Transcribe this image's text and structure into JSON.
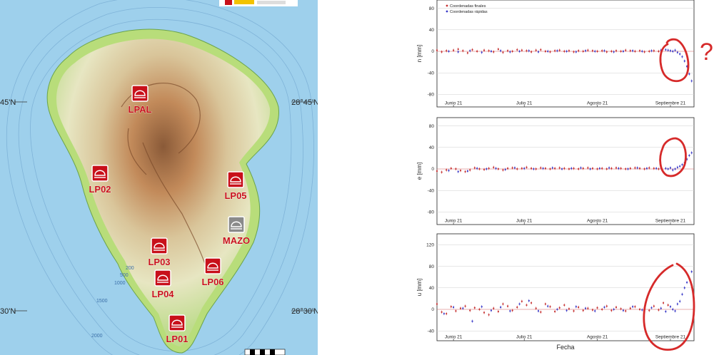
{
  "map": {
    "lat_labels": {
      "left_mid": "45'N",
      "right_mid": "28°45'N",
      "left_bottom": "30'N",
      "right_bottom": "28°30'N"
    },
    "contours": [
      "200",
      "500",
      "1000",
      "1500",
      "2000"
    ],
    "stations": [
      {
        "name": "LPAL",
        "style": "red"
      },
      {
        "name": "LP02",
        "style": "red"
      },
      {
        "name": "LP05",
        "style": "red"
      },
      {
        "name": "MAZO",
        "style": "gray"
      },
      {
        "name": "LP03",
        "style": "red"
      },
      {
        "name": "LP04",
        "style": "red"
      },
      {
        "name": "LP06",
        "style": "red"
      },
      {
        "name": "LP01",
        "style": "red"
      }
    ],
    "colors": {
      "sea": "#9ed0ec",
      "coast": "#b8dd7a",
      "station": "#c8101a",
      "station_gray": "#8a8a8a"
    }
  },
  "legend": {
    "final_label": "Coordenadas finales",
    "rapid_label": "Coordenadas rápidas",
    "final_color": "#c63030",
    "rapid_color": "#3a3ac8"
  },
  "annotation": {
    "mark": "?"
  },
  "chart_data": [
    {
      "type": "scatter",
      "ylabel": "n [mm]",
      "xlabel": "",
      "ylim": [
        -90,
        90
      ],
      "yticks": [
        -80,
        -40,
        0,
        40,
        80
      ],
      "xticks": [
        {
          "label": "Junio 21",
          "day": 7
        },
        {
          "label": "Julio 21",
          "day": 37
        },
        {
          "label": "Agosto 21",
          "day": 68
        },
        {
          "label": "Septiembre 21",
          "day": 99
        }
      ],
      "xlim": [
        0,
        109
      ],
      "grid": true,
      "series": [
        {
          "name": "Coordenadas finales",
          "points": [
            [
              0,
              2
            ],
            [
              2,
              -1
            ],
            [
              4,
              1
            ],
            [
              7,
              2
            ],
            [
              9,
              4
            ],
            [
              11,
              1
            ],
            [
              13,
              -3
            ],
            [
              15,
              3
            ],
            [
              17,
              0
            ],
            [
              20,
              2
            ],
            [
              22,
              1
            ],
            [
              24,
              -1
            ],
            [
              26,
              4
            ],
            [
              28,
              -2
            ],
            [
              30,
              1
            ],
            [
              32,
              0
            ],
            [
              34,
              3
            ],
            [
              36,
              2
            ],
            [
              38,
              1
            ],
            [
              40,
              -1
            ],
            [
              42,
              2
            ],
            [
              44,
              3
            ],
            [
              46,
              0
            ],
            [
              48,
              -1
            ],
            [
              50,
              1
            ],
            [
              52,
              2
            ],
            [
              54,
              0
            ],
            [
              56,
              1
            ],
            [
              58,
              -1
            ],
            [
              60,
              1
            ],
            [
              62,
              0
            ],
            [
              64,
              2
            ],
            [
              66,
              1
            ],
            [
              68,
              0
            ],
            [
              70,
              1
            ],
            [
              72,
              -1
            ],
            [
              74,
              0
            ],
            [
              76,
              1
            ],
            [
              78,
              0
            ],
            [
              80,
              2
            ],
            [
              82,
              1
            ],
            [
              84,
              0
            ],
            [
              86,
              1
            ],
            [
              88,
              -1
            ],
            [
              90,
              0
            ],
            [
              92,
              1
            ],
            [
              94,
              0
            ]
          ]
        },
        {
          "name": "Coordenadas rápidas",
          "points": [
            [
              5,
              0
            ],
            [
              9,
              -1
            ],
            [
              14,
              1
            ],
            [
              19,
              -2
            ],
            [
              23,
              0
            ],
            [
              27,
              1
            ],
            [
              31,
              -1
            ],
            [
              35,
              0
            ],
            [
              39,
              1
            ],
            [
              43,
              -1
            ],
            [
              47,
              0
            ],
            [
              51,
              1
            ],
            [
              55,
              0
            ],
            [
              59,
              -1
            ],
            [
              63,
              1
            ],
            [
              67,
              0
            ],
            [
              71,
              1
            ],
            [
              75,
              -1
            ],
            [
              79,
              0
            ],
            [
              83,
              1
            ],
            [
              87,
              0
            ],
            [
              91,
              1
            ],
            [
              95,
              2
            ],
            [
              97,
              3
            ],
            [
              98,
              2
            ],
            [
              99,
              1
            ],
            [
              100,
              0
            ],
            [
              101,
              2
            ],
            [
              102,
              -2
            ],
            [
              103,
              -5
            ],
            [
              104,
              -10
            ],
            [
              105,
              -18
            ],
            [
              106,
              -28
            ],
            [
              107,
              -42
            ],
            [
              108,
              -55
            ]
          ]
        }
      ]
    },
    {
      "type": "scatter",
      "ylabel": "e [mm]",
      "xlabel": "",
      "ylim": [
        -90,
        90
      ],
      "yticks": [
        -80,
        -40,
        0,
        40,
        80
      ],
      "xticks": [
        {
          "label": "Junio 21",
          "day": 7
        },
        {
          "label": "Julio 21",
          "day": 37
        },
        {
          "label": "Agosto 21",
          "day": 68
        },
        {
          "label": "Septiembre 21",
          "day": 99
        }
      ],
      "xlim": [
        0,
        109
      ],
      "grid": true,
      "series": [
        {
          "name": "Coordenadas finales",
          "points": [
            [
              0,
              -4
            ],
            [
              2,
              -6
            ],
            [
              4,
              -2
            ],
            [
              6,
              1
            ],
            [
              8,
              0
            ],
            [
              10,
              -3
            ],
            [
              12,
              -5
            ],
            [
              14,
              -2
            ],
            [
              16,
              2
            ],
            [
              18,
              0
            ],
            [
              20,
              -1
            ],
            [
              22,
              1
            ],
            [
              24,
              3
            ],
            [
              26,
              0
            ],
            [
              28,
              -2
            ],
            [
              30,
              1
            ],
            [
              32,
              2
            ],
            [
              34,
              0
            ],
            [
              36,
              1
            ],
            [
              38,
              3
            ],
            [
              40,
              1
            ],
            [
              42,
              0
            ],
            [
              44,
              2
            ],
            [
              46,
              1
            ],
            [
              48,
              0
            ],
            [
              50,
              1
            ],
            [
              52,
              2
            ],
            [
              54,
              1
            ],
            [
              56,
              0
            ],
            [
              58,
              1
            ],
            [
              60,
              0
            ],
            [
              62,
              1
            ],
            [
              64,
              2
            ],
            [
              66,
              1
            ],
            [
              68,
              0
            ],
            [
              70,
              1
            ],
            [
              72,
              0
            ],
            [
              74,
              1
            ],
            [
              76,
              2
            ],
            [
              78,
              1
            ],
            [
              80,
              0
            ],
            [
              82,
              1
            ],
            [
              84,
              2
            ],
            [
              86,
              1
            ],
            [
              88,
              0
            ],
            [
              90,
              2
            ],
            [
              92,
              1
            ],
            [
              94,
              0
            ]
          ]
        },
        {
          "name": "Coordenadas rápidas",
          "points": [
            [
              5,
              -3
            ],
            [
              9,
              -5
            ],
            [
              13,
              -4
            ],
            [
              17,
              1
            ],
            [
              21,
              0
            ],
            [
              25,
              1
            ],
            [
              29,
              -1
            ],
            [
              33,
              2
            ],
            [
              37,
              1
            ],
            [
              41,
              0
            ],
            [
              45,
              1
            ],
            [
              49,
              2
            ],
            [
              53,
              0
            ],
            [
              57,
              1
            ],
            [
              61,
              2
            ],
            [
              65,
              0
            ],
            [
              69,
              1
            ],
            [
              73,
              2
            ],
            [
              77,
              1
            ],
            [
              81,
              0
            ],
            [
              85,
              2
            ],
            [
              89,
              1
            ],
            [
              93,
              1
            ],
            [
              95,
              2
            ],
            [
              97,
              1
            ],
            [
              98,
              0
            ],
            [
              99,
              2
            ],
            [
              100,
              -2
            ],
            [
              101,
              0
            ],
            [
              102,
              3
            ],
            [
              103,
              5
            ],
            [
              104,
              8
            ],
            [
              105,
              12
            ],
            [
              106,
              18
            ],
            [
              107,
              25
            ],
            [
              108,
              30
            ]
          ]
        }
      ]
    },
    {
      "type": "scatter",
      "ylabel": "u [mm]",
      "xlabel": "Fecha",
      "ylim": [
        -45,
        135
      ],
      "yticks": [
        -40,
        0,
        40,
        80,
        120
      ],
      "xticks": [
        {
          "label": "Junio 21",
          "day": 7
        },
        {
          "label": "Julio 21",
          "day": 37
        },
        {
          "label": "Agosto 21",
          "day": 68
        },
        {
          "label": "Septiembre 21",
          "day": 99
        }
      ],
      "xlim": [
        0,
        109
      ],
      "grid": true,
      "series": [
        {
          "name": "Coordenadas finales",
          "points": [
            [
              0,
              10
            ],
            [
              2,
              -5
            ],
            [
              4,
              -8
            ],
            [
              6,
              5
            ],
            [
              8,
              -3
            ],
            [
              10,
              2
            ],
            [
              12,
              6
            ],
            [
              14,
              -2
            ],
            [
              16,
              3
            ],
            [
              18,
              0
            ],
            [
              20,
              -6
            ],
            [
              22,
              -10
            ],
            [
              24,
              2
            ],
            [
              26,
              -4
            ],
            [
              28,
              10
            ],
            [
              30,
              6
            ],
            [
              32,
              -2
            ],
            [
              34,
              4
            ],
            [
              36,
              15
            ],
            [
              38,
              8
            ],
            [
              40,
              12
            ],
            [
              42,
              2
            ],
            [
              44,
              -5
            ],
            [
              46,
              10
            ],
            [
              48,
              5
            ],
            [
              50,
              -4
            ],
            [
              52,
              3
            ],
            [
              54,
              8
            ],
            [
              56,
              1
            ],
            [
              58,
              -3
            ],
            [
              60,
              4
            ],
            [
              62,
              -2
            ],
            [
              64,
              2
            ],
            [
              66,
              -1
            ],
            [
              68,
              3
            ],
            [
              70,
              0
            ],
            [
              72,
              6
            ],
            [
              74,
              -2
            ],
            [
              76,
              4
            ],
            [
              78,
              1
            ],
            [
              80,
              -3
            ],
            [
              82,
              2
            ],
            [
              84,
              5
            ],
            [
              86,
              0
            ],
            [
              88,
              3
            ],
            [
              90,
              -2
            ],
            [
              92,
              6
            ],
            [
              94,
              -1
            ],
            [
              96,
              12
            ],
            [
              98,
              8
            ]
          ]
        },
        {
          "name": "Coordenadas rápidas",
          "points": [
            [
              3,
              -8
            ],
            [
              7,
              4
            ],
            [
              11,
              2
            ],
            [
              15,
              -22
            ],
            [
              19,
              5
            ],
            [
              23,
              -2
            ],
            [
              27,
              4
            ],
            [
              31,
              -3
            ],
            [
              35,
              10
            ],
            [
              39,
              16
            ],
            [
              43,
              -3
            ],
            [
              47,
              6
            ],
            [
              51,
              0
            ],
            [
              55,
              -2
            ],
            [
              59,
              5
            ],
            [
              63,
              2
            ],
            [
              67,
              -3
            ],
            [
              71,
              4
            ],
            [
              75,
              0
            ],
            [
              79,
              -2
            ],
            [
              83,
              5
            ],
            [
              87,
              -1
            ],
            [
              91,
              3
            ],
            [
              95,
              2
            ],
            [
              97,
              -4
            ],
            [
              99,
              5
            ],
            [
              100,
              0
            ],
            [
              101,
              -3
            ],
            [
              102,
              10
            ],
            [
              103,
              15
            ],
            [
              104,
              28
            ],
            [
              105,
              40
            ],
            [
              106,
              50
            ],
            [
              107,
              58
            ],
            [
              108,
              70
            ]
          ]
        }
      ]
    }
  ]
}
